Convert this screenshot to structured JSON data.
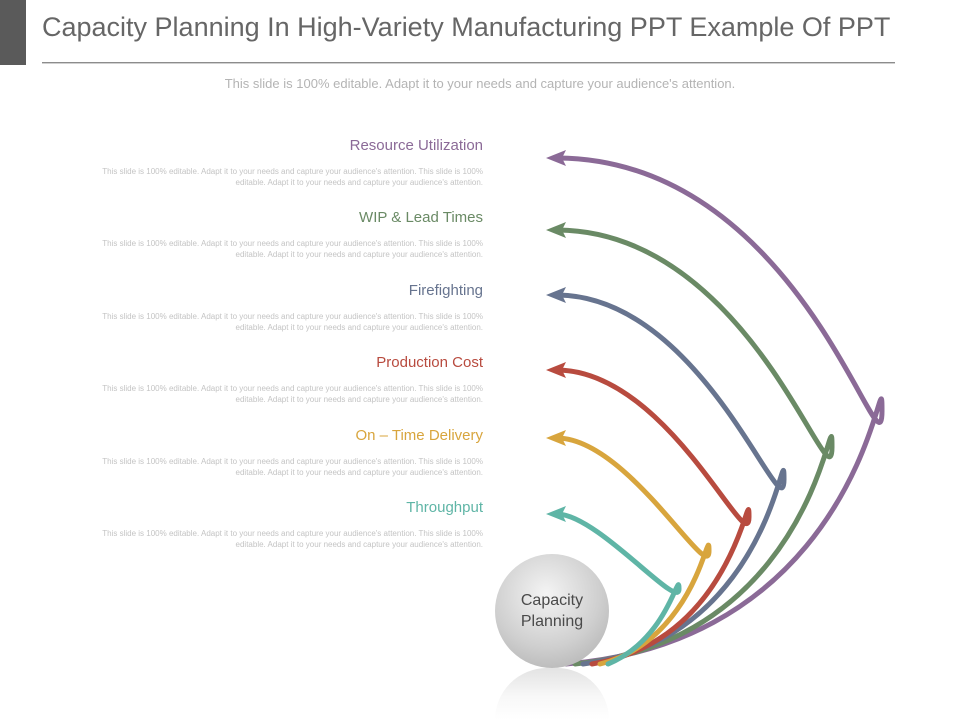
{
  "title": "Capacity Planning In High-Variety Manufacturing PPT Example Of PPT",
  "subtitle": "This slide is 100% editable. Adapt it to your needs and capture your audience's attention.",
  "center": {
    "label_line1": "Capacity",
    "label_line2": "Planning"
  },
  "items": [
    {
      "heading": "Resource Utilization",
      "color": "#8b6a97",
      "description": "This slide is 100% editable. Adapt it to your needs and capture your audience's attention. This slide is 100% editable. Adapt it to your needs and capture your audience's attention."
    },
    {
      "heading": "WIP &  Lead Times",
      "color": "#6a8a65",
      "description": "This slide is 100% editable. Adapt it to your needs and capture your audience's attention. This slide is 100% editable. Adapt it to your needs and capture your audience's attention."
    },
    {
      "heading": "Firefighting",
      "color": "#67748f",
      "description": "This slide is 100% editable. Adapt it to your needs and capture your audience's attention. This slide is 100% editable. Adapt it to your needs and capture your audience's attention."
    },
    {
      "heading": "Production Cost",
      "color": "#b84b3f",
      "description": "This slide is 100% editable. Adapt it to your needs and capture your audience's attention. This slide is 100% editable. Adapt it to your needs and capture your audience's attention."
    },
    {
      "heading": "On – Time Delivery",
      "color": "#d8a53d",
      "description": "This slide is 100% editable. Adapt it to your needs and capture your audience's attention. This slide is 100% editable. Adapt it to your needs and capture your audience's attention."
    },
    {
      "heading": "Throughput",
      "color": "#5fb5a6",
      "description": "This slide is 100% editable. Adapt it to your needs and capture your audience's attention. This slide is 100% editable. Adapt it to your needs and capture your audience's attention."
    }
  ]
}
